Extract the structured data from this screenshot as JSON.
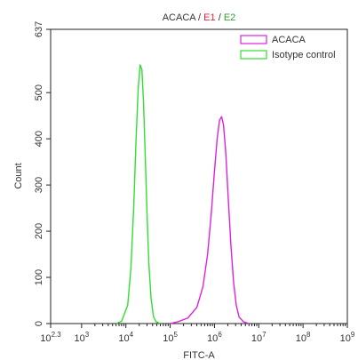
{
  "chart_data": {
    "type": "line",
    "title_parts": [
      {
        "text": "ACACA",
        "color": "#333333"
      },
      {
        "text": " / ",
        "color": "#333333"
      },
      {
        "text": "E1",
        "color": "#e0213c"
      },
      {
        "text": " / ",
        "color": "#333333"
      },
      {
        "text": "E2",
        "color": "#2e9e2e"
      }
    ],
    "xlabel": "FITC-A",
    "ylabel": "Count",
    "x_scale": "log",
    "xlim": [
      200,
      1000000000
    ],
    "ylim": [
      0,
      637
    ],
    "x_ticks": [
      {
        "value": 200,
        "base": "10",
        "exp": "2.3"
      },
      {
        "value": 1000,
        "base": "10",
        "exp": "3"
      },
      {
        "value": 10000,
        "base": "10",
        "exp": "4"
      },
      {
        "value": 100000,
        "base": "10",
        "exp": "5"
      },
      {
        "value": 1000000,
        "base": "10",
        "exp": "6"
      },
      {
        "value": 10000000,
        "base": "10",
        "exp": "7"
      },
      {
        "value": 100000000,
        "base": "10",
        "exp": "8"
      },
      {
        "value": 1000000000,
        "base": "10",
        "exp": "9"
      }
    ],
    "y_ticks": [
      {
        "value": 0,
        "label": "0"
      },
      {
        "value": 100,
        "label": "100"
      },
      {
        "value": 200,
        "label": "200"
      },
      {
        "value": 300,
        "label": "300"
      },
      {
        "value": 400,
        "label": "400"
      },
      {
        "value": 500,
        "label": "500"
      },
      {
        "value": 637,
        "label": "637"
      }
    ],
    "legend_position": "top-right",
    "grid": false,
    "series": [
      {
        "name": "ACACA",
        "color": "#dd22dd",
        "points": [
          [
            100000,
            0
          ],
          [
            150000,
            4
          ],
          [
            250000,
            12
          ],
          [
            400000,
            35
          ],
          [
            550000,
            80
          ],
          [
            700000,
            150
          ],
          [
            850000,
            240
          ],
          [
            1000000,
            330
          ],
          [
            1150000,
            400
          ],
          [
            1300000,
            440
          ],
          [
            1450000,
            448
          ],
          [
            1600000,
            430
          ],
          [
            1800000,
            370
          ],
          [
            2050000,
            270
          ],
          [
            2350000,
            170
          ],
          [
            2700000,
            90
          ],
          [
            3100000,
            40
          ],
          [
            3600000,
            14
          ],
          [
            4500000,
            4
          ],
          [
            6000000,
            0
          ]
        ]
      },
      {
        "name": "Isotype control",
        "color": "#33dd33",
        "points": [
          [
            6000,
            0
          ],
          [
            8000,
            5
          ],
          [
            11000,
            40
          ],
          [
            13000,
            120
          ],
          [
            15000,
            250
          ],
          [
            17000,
            400
          ],
          [
            19000,
            510
          ],
          [
            21000,
            560
          ],
          [
            23000,
            550
          ],
          [
            25000,
            480
          ],
          [
            27000,
            380
          ],
          [
            30000,
            240
          ],
          [
            33000,
            130
          ],
          [
            37000,
            55
          ],
          [
            42000,
            15
          ],
          [
            48000,
            4
          ],
          [
            60000,
            0
          ]
        ]
      }
    ]
  }
}
